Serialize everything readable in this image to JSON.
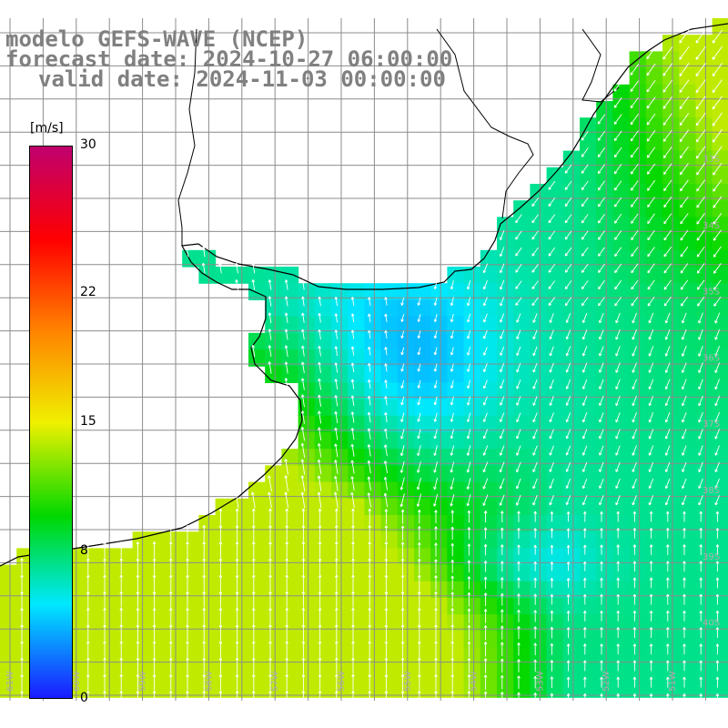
{
  "title": {
    "model": "modelo GEFS-WAVE (NCEP)",
    "forecast": "forecast date: 2024-10-27 06:00:00",
    "valid": "valid date: 2024-11-03 00:00:00"
  },
  "colorbar": {
    "unit": "[m/s]",
    "min": 0,
    "max": 30,
    "tick_labels": [
      "30",
      "22",
      "15",
      "8",
      "0"
    ],
    "tick_values": [
      30,
      22,
      15,
      8,
      0
    ],
    "colors": [
      "#1a1aff",
      "#00e8ff",
      "#00d800",
      "#f0f000",
      "#ff8000",
      "#ff0000",
      "#c0006e"
    ]
  },
  "map": {
    "field": "wind speed",
    "land_color": "#ffffff",
    "grid_color": "#8c8c8c",
    "arrow_color": "#ffffff",
    "coast_color": "#000000",
    "lat_labels": [
      "33S",
      "34S",
      "35S",
      "36S",
      "37S",
      "38S",
      "39S",
      "40S"
    ],
    "lon_labels": [
      "61W",
      "60W",
      "59W",
      "58W",
      "57W",
      "56W",
      "55W",
      "54W",
      "53W",
      "52W",
      "51W"
    ]
  }
}
